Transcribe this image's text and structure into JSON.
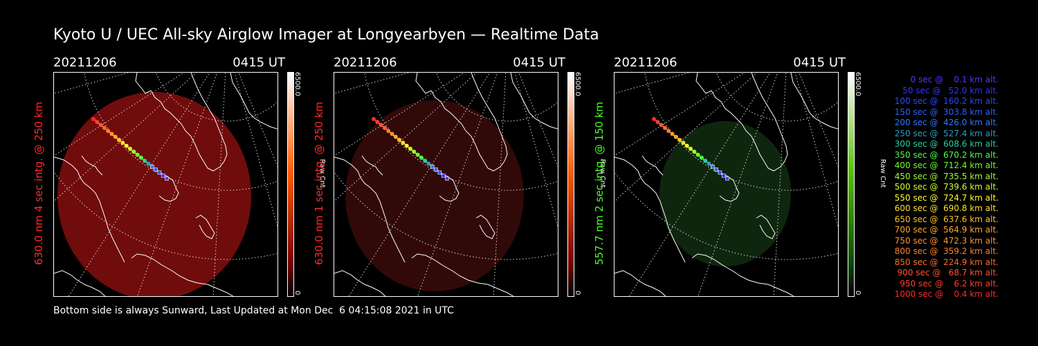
{
  "title": "Kyoto U / UEC All-sky Airglow Imager at Longyearbyen — Realtime Data",
  "panels": [
    {
      "date": "20211206",
      "time": "0415 UT",
      "side_label": "630.0 nm 4 sec intg. @ 250 km",
      "label_color": "#ff2a2a",
      "cbar_max": "6500.0",
      "cbar_min": "0",
      "cbar_unit": "Raw Cnt",
      "cbar_top": "#ffffff",
      "cbar_mid": "#ff5a00",
      "cbar_low": "#7a0000",
      "glow": "#7a0d0d",
      "glow_opacity": 0.92,
      "glow_size": 1.0
    },
    {
      "date": "20211206",
      "time": "0415 UT",
      "side_label": "630.0 nm 1 sec intg. @ 250 km",
      "label_color": "#ff2a2a",
      "cbar_max": "6500.0",
      "cbar_min": "0",
      "cbar_unit": "Raw Cnt",
      "cbar_top": "#ffffff",
      "cbar_mid": "#ff5a00",
      "cbar_low": "#7a0000",
      "glow": "#3a0a0a",
      "glow_opacity": 0.85,
      "glow_size": 0.92
    },
    {
      "date": "20211206",
      "time": "0415 UT",
      "side_label": "557.7 nm 2 sec intg. @ 150 km",
      "label_color": "#4cff2a",
      "cbar_max": "6500.0",
      "cbar_min": "0",
      "cbar_unit": "Raw Cnt",
      "cbar_top": "#ffffff",
      "cbar_mid": "#55c000",
      "cbar_low": "#0a4a00",
      "glow": "#0f2a0f",
      "glow_opacity": 0.9,
      "glow_size": 0.72
    }
  ],
  "legend": [
    {
      "text": "   0 sec @    0.1 km alt.",
      "color": "#5533ff"
    },
    {
      "text": "  50 sec @   52.0 km alt.",
      "color": "#3333ff"
    },
    {
      "text": " 100 sec @  160.2 km alt.",
      "color": "#2a4aff"
    },
    {
      "text": " 150 sec @  303.8 km alt.",
      "color": "#2a60ff"
    },
    {
      "text": " 200 sec @  426.0 km alt.",
      "color": "#2a7aff"
    },
    {
      "text": " 250 sec @  527.4 km alt.",
      "color": "#2aa0c0"
    },
    {
      "text": " 300 sec @  608.6 km alt.",
      "color": "#2ad0a0"
    },
    {
      "text": " 350 sec @  670.2 km alt.",
      "color": "#4cff4c"
    },
    {
      "text": " 400 sec @  712.4 km alt.",
      "color": "#6cff2a"
    },
    {
      "text": " 450 sec @  735.5 km alt.",
      "color": "#a0ff2a"
    },
    {
      "text": " 500 sec @  739.6 km alt.",
      "color": "#d0ff2a"
    },
    {
      "text": " 550 sec @  724.7 km alt.",
      "color": "#ffff2a"
    },
    {
      "text": " 600 sec @  690.8 km alt.",
      "color": "#ffe02a"
    },
    {
      "text": " 650 sec @  637.6 km alt.",
      "color": "#ffc02a"
    },
    {
      "text": " 700 sec @  564.9 km alt.",
      "color": "#ffaa2a"
    },
    {
      "text": " 750 sec @  472.3 km alt.",
      "color": "#ff962a"
    },
    {
      "text": " 800 sec @  359.2 km alt.",
      "color": "#ff802a"
    },
    {
      "text": " 850 sec @  224.9 km alt.",
      "color": "#ff6a2a"
    },
    {
      "text": " 900 sec @   68.7 km alt.",
      "color": "#ff552a"
    },
    {
      "text": " 950 sec @    6.2 km alt.",
      "color": "#ff402a"
    },
    {
      "text": "1000 sec @    0.4 km alt.",
      "color": "#ff2a2a"
    }
  ],
  "footer": "Bottom side is always Sunward, Last Updated at Mon Dec  6 04:15:08 2021 in UTC"
}
